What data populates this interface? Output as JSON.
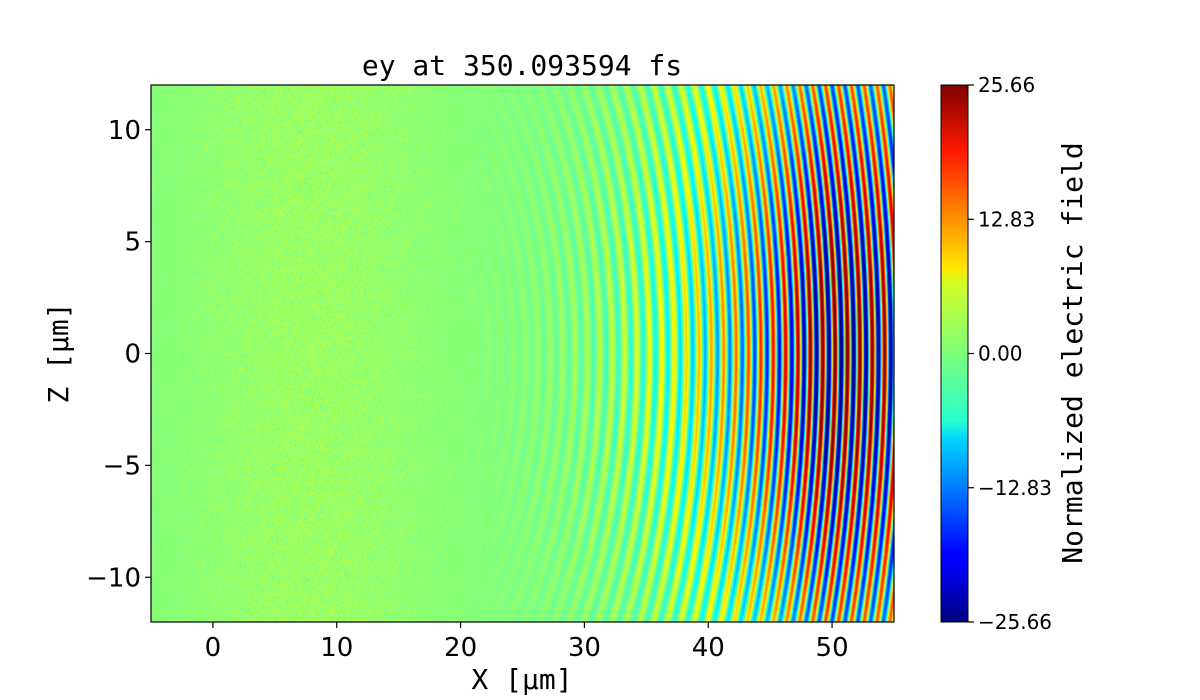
{
  "chart_data": {
    "type": "heatmap",
    "title": "ey at 350.093594 fs",
    "xlabel": "X [µm]",
    "ylabel": "Z [µm]",
    "xlim": [
      -5,
      55
    ],
    "ylim": [
      -12,
      12
    ],
    "x_ticks": [
      0,
      10,
      20,
      30,
      40,
      50
    ],
    "x_tick_labels": [
      "0",
      "10",
      "20",
      "30",
      "40",
      "50"
    ],
    "y_ticks": [
      -10,
      -5,
      0,
      5,
      10
    ],
    "y_tick_labels": [
      "−10",
      "−5",
      "0",
      "5",
      "10"
    ],
    "colormap": "jet",
    "colorbar": {
      "label": "Normalized electric field",
      "range": [
        -25.66,
        25.66
      ],
      "ticks": [
        -25.66,
        -12.83,
        0.0,
        12.83,
        25.66
      ],
      "tick_labels": [
        "−25.66",
        "−12.83",
        "0.00",
        "12.83",
        "25.66"
      ]
    },
    "field_pattern": {
      "description_values": "curved wavefronts; amplitude grows toward large X",
      "wavelength_um": 1.0,
      "wave_onset_x_um": 22,
      "peak_amplitude_x_um": 48,
      "peak_amplitude": 25.66,
      "transverse_width_um": 10
    }
  }
}
